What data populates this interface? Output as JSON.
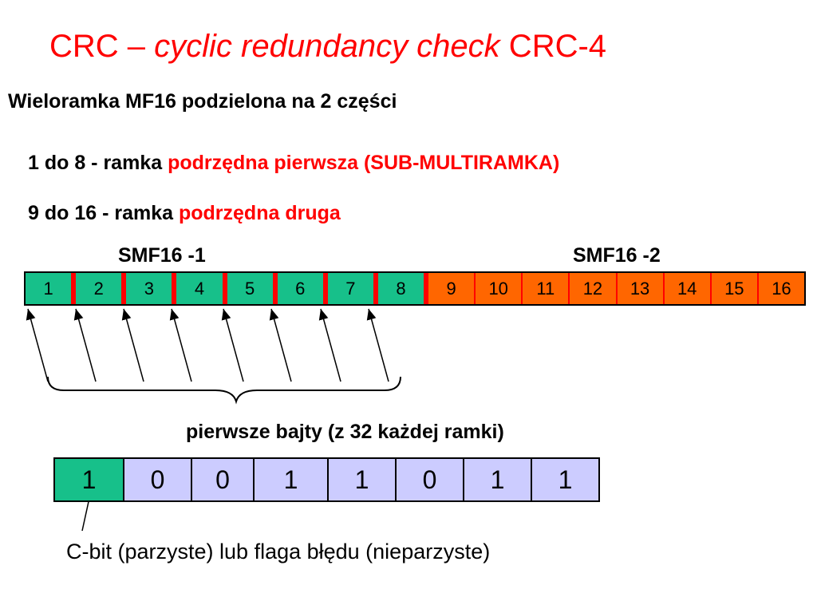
{
  "title": {
    "part1": "CRC – ",
    "italic": "cyclic redundancy check",
    "part2": " CRC-4"
  },
  "subtitle": "Wieloramka MF16 podzielona na 2 części",
  "line1": {
    "black": "1 do 8 - ramka ",
    "red": "podrzędna pierwsza (SUB-MULTIRAMKA)"
  },
  "line2": {
    "black": "9 do 16 - ramka ",
    "red": "podrzędna druga"
  },
  "smf1_label": "SMF16 -1",
  "smf2_label": "SMF16 -2",
  "frames": [
    "1",
    "2",
    "3",
    "4",
    "5",
    "6",
    "7",
    "8",
    "9",
    "10",
    "11",
    "12",
    "13",
    "14",
    "15",
    "16"
  ],
  "caption": "pierwsze bajty (z 32 każdej ramki)",
  "bits": [
    "1",
    "0",
    "0",
    "1",
    "1",
    "0",
    "1",
    "1"
  ],
  "cbit_note": "C-bit (parzyste) lub flaga błędu (nieparzyste)",
  "colors": {
    "title": "#ff0000",
    "smf1_fill": "#17c08a",
    "smf2_fill": "#ff6600",
    "bit_fill": "#ccccff",
    "divider": "#ff0000"
  }
}
